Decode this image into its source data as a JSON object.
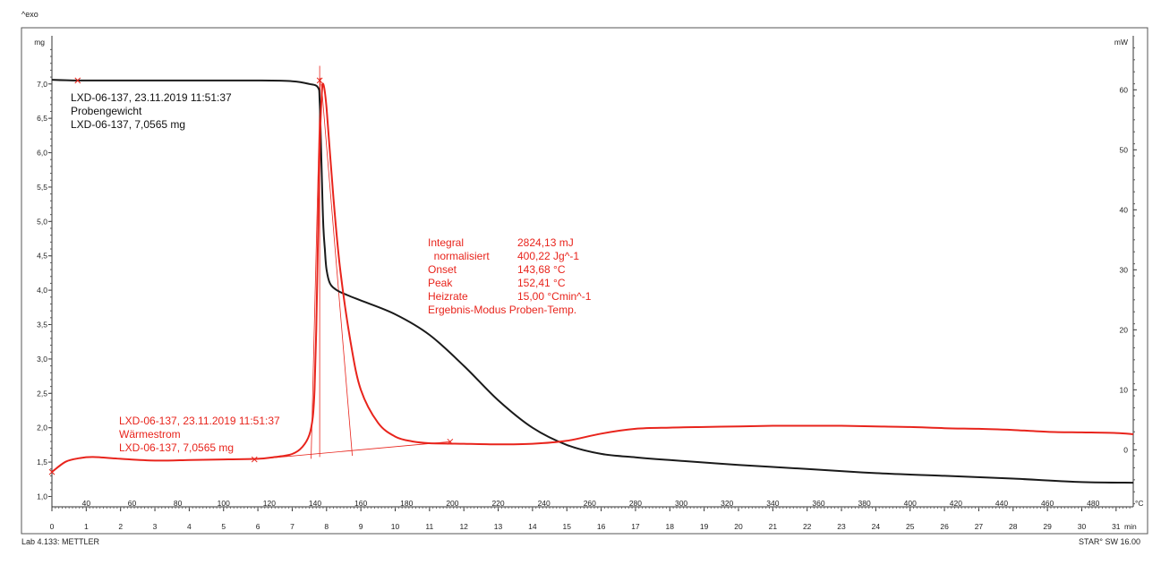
{
  "page": {
    "exo_label": "^exo",
    "footer_left": "Lab 4.133: METTLER",
    "footer_right": "STAR° SW 16.00"
  },
  "chart_data": {
    "type": "line",
    "time_axis": {
      "unit": "min",
      "range": [
        0,
        31.5
      ],
      "ticks": [
        "0",
        "1",
        "2",
        "3",
        "4",
        "5",
        "6",
        "7",
        "8",
        "9",
        "10",
        "11",
        "12",
        "13",
        "14",
        "15",
        "16",
        "17",
        "18",
        "19",
        "20",
        "21",
        "22",
        "23",
        "24",
        "25",
        "26",
        "27",
        "28",
        "29",
        "30",
        "31"
      ]
    },
    "temp_axis": {
      "unit": "°C",
      "ticks": [
        "40",
        "60",
        "80",
        "100",
        "120",
        "140",
        "160",
        "180",
        "200",
        "220",
        "240",
        "260",
        "280",
        "300",
        "320",
        "340",
        "360",
        "380",
        "400",
        "420",
        "440",
        "460",
        "480"
      ]
    },
    "left_axis": {
      "unit": "mg",
      "range": [
        0.85,
        7.7
      ],
      "ticks": [
        "1,0",
        "1,5",
        "2,0",
        "2,5",
        "3,0",
        "3,5",
        "4,0",
        "4,5",
        "5,0",
        "5,5",
        "6,0",
        "6,5",
        "7,0"
      ]
    },
    "right_axis": {
      "unit": "mW",
      "range": [
        -9.5,
        69
      ],
      "ticks": [
        "0",
        "10",
        "20",
        "30",
        "40",
        "50",
        "60"
      ]
    },
    "series": [
      {
        "name": "Probengewicht",
        "axis": "left",
        "color": "#1a1a1a",
        "label_lines": [
          "LXD-06-137, 23.11.2019 11:51:37",
          "Probengewicht",
          "LXD-06-137, 7,0565 mg"
        ],
        "x": [
          0,
          0.8,
          2,
          4,
          6,
          7,
          7.5,
          7.75,
          7.8,
          7.85,
          7.9,
          7.95,
          8.0,
          8.1,
          8.3,
          8.6,
          9,
          10,
          11,
          12,
          13,
          14,
          15,
          16,
          17,
          18,
          20,
          22,
          24,
          26,
          28,
          30,
          31.5
        ],
        "y": [
          7.06,
          7.05,
          7.05,
          7.05,
          7.05,
          7.04,
          7.0,
          6.95,
          6.75,
          5.9,
          5.0,
          4.6,
          4.3,
          4.1,
          4.0,
          3.93,
          3.85,
          3.65,
          3.35,
          2.9,
          2.4,
          2.0,
          1.75,
          1.62,
          1.57,
          1.53,
          1.46,
          1.4,
          1.34,
          1.3,
          1.26,
          1.21,
          1.2
        ]
      },
      {
        "name": "Wärmestrom",
        "axis": "right",
        "color": "#e8241c",
        "label_lines": [
          "LXD-06-137, 23.11.2019 11:51:37",
          "Wärmestrom",
          "LXD-06-137, 7,0565 mg"
        ],
        "x": [
          0,
          0.4,
          0.8,
          1.2,
          2,
          3,
          4,
          5,
          6,
          6.5,
          7,
          7.3,
          7.5,
          7.6,
          7.65,
          7.7,
          7.75,
          7.8,
          7.85,
          7.9,
          8.0,
          8.2,
          8.4,
          8.7,
          9.0,
          9.5,
          10,
          10.5,
          11,
          12,
          13,
          14,
          15,
          16,
          17,
          18,
          19,
          20,
          21,
          22,
          23,
          24,
          25,
          26,
          27,
          28,
          29,
          30,
          31,
          31.5
        ],
        "y": [
          -3.7,
          -2.0,
          -1.4,
          -1.2,
          -1.5,
          -1.8,
          -1.7,
          -1.6,
          -1.5,
          -1.2,
          -0.7,
          0.5,
          2.5,
          5.5,
          10,
          20,
          35,
          50,
          58,
          61,
          57,
          42,
          30,
          18,
          10,
          4.5,
          2.2,
          1.4,
          1.1,
          1.0,
          0.9,
          1.0,
          1.5,
          2.7,
          3.5,
          3.7,
          3.8,
          3.9,
          4.0,
          4.0,
          4.0,
          3.9,
          3.8,
          3.6,
          3.5,
          3.3,
          3.0,
          2.9,
          2.8,
          2.6
        ]
      }
    ],
    "construction_lines": [
      {
        "name": "baseline",
        "x1": 5.9,
        "y1": -1.6,
        "x2": 11.6,
        "y2": 1.35
      },
      {
        "name": "peak-vertical",
        "x1": 7.8,
        "y1": -1.2,
        "x2": 7.8,
        "y2": 64
      },
      {
        "name": "leading-tangent",
        "x1": 7.55,
        "y1": -1.5,
        "x2": 7.82,
        "y2": 62
      },
      {
        "name": "trailing-tangent",
        "x1": 7.85,
        "y1": 61,
        "x2": 8.75,
        "y2": -1.0
      }
    ],
    "markers": [
      {
        "name": "weight-start",
        "axis": "left",
        "x": 0.75,
        "y": 7.05
      },
      {
        "name": "weight-end",
        "axis": "left",
        "x": 7.8,
        "y": 7.05
      },
      {
        "name": "integration-start",
        "axis": "right",
        "x": 5.9,
        "y": -1.6
      },
      {
        "name": "integration-end",
        "axis": "right",
        "x": 11.6,
        "y": 1.35
      },
      {
        "name": "heatflow-start",
        "axis": "right",
        "x": 0.0,
        "y": -3.7
      }
    ],
    "result_box": {
      "color": "#e8241c",
      "rows": [
        {
          "label": "Integral",
          "value": "2824,13 mJ"
        },
        {
          "label": "  normalisiert",
          "value": "400,22 Jg^-1"
        },
        {
          "label": "Onset",
          "value": "143,68 °C"
        },
        {
          "label": "Peak",
          "value": "152,41 °C"
        },
        {
          "label": "Heizrate",
          "value": "15,00 °Cmin^-1"
        },
        {
          "label": "Ergebnis-Modus Proben-Temp.",
          "value": ""
        }
      ]
    }
  }
}
